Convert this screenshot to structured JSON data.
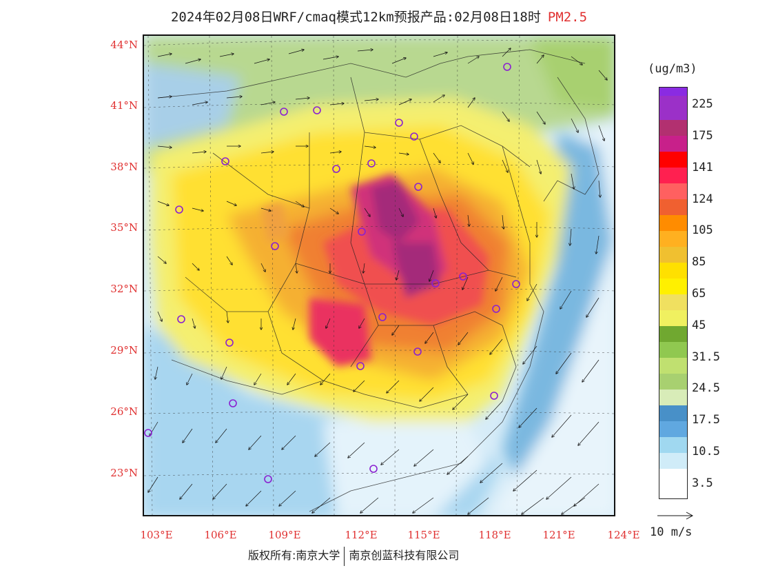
{
  "title": {
    "main": "2024年02月08日WRF/cmaq模式12km预报产品:02月08日18时",
    "pollutant": "PM2.5"
  },
  "lat_labels": [
    "44°N",
    "41°N",
    "38°N",
    "35°N",
    "32°N",
    "29°N",
    "26°N",
    "23°N"
  ],
  "lon_labels": [
    "103°E",
    "106°E",
    "109°E",
    "112°E",
    "115°E",
    "118°E",
    "121°E",
    "124°E"
  ],
  "legend": {
    "unit": "(ug/m3)",
    "labels": [
      "225",
      "175",
      "141",
      "124",
      "105",
      "85",
      "65",
      "45",
      "31.5",
      "24.5",
      "17.5",
      "10.5",
      "3.5"
    ],
    "colors": [
      "#8a2be2",
      "#9b30c8",
      "#b23070",
      "#c8208a",
      "#ff0000",
      "#ff2050",
      "#ff6060",
      "#f06030",
      "#ff8c00",
      "#ffb020",
      "#f0c030",
      "#ffe000",
      "#fff000",
      "#f0e060",
      "#f0f060",
      "#70a830",
      "#90c850",
      "#c0e070",
      "#a8d070",
      "#d8ecb8",
      "#4890c8",
      "#60a8e0",
      "#a0d8f0",
      "#d0ecf8",
      "#ffffff"
    ],
    "vector_label": "10 m/s",
    "colors_note": ""
  },
  "copyright": {
    "left": "版权所有:南京大学",
    "right": "南京创蓝科技有限公司"
  }
}
